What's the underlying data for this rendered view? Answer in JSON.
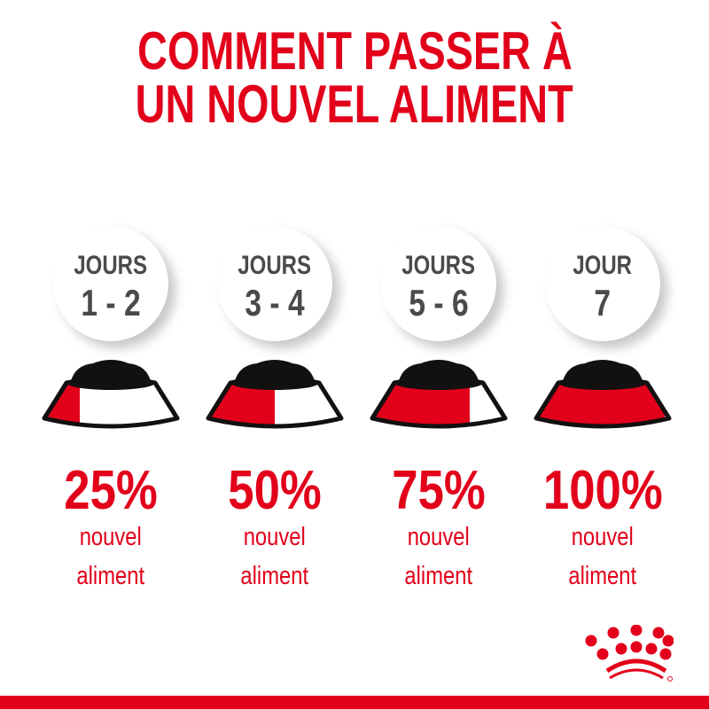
{
  "title": {
    "line1": "COMMENT PASSER À",
    "line2": "UN NOUVEL ALIMENT"
  },
  "colors": {
    "accent": "#e2001a",
    "text_gray": "#4a4a4a"
  },
  "steps": [
    {
      "label": "JOURS",
      "days": "1 - 2",
      "percent": "25%",
      "fraction": 0.25,
      "line1": "nouvel",
      "line2": "aliment"
    },
    {
      "label": "JOURS",
      "days": "3 - 4",
      "percent": "50%",
      "fraction": 0.5,
      "line1": "nouvel",
      "line2": "aliment"
    },
    {
      "label": "JOURS",
      "days": "5 - 6",
      "percent": "75%",
      "fraction": 0.75,
      "line1": "nouvel",
      "line2": "aliment"
    },
    {
      "label": "JOUR",
      "days": "7",
      "percent": "100%",
      "fraction": 1.0,
      "line1": "nouvel",
      "line2": "aliment"
    }
  ],
  "logo": {
    "name": "crown-logo"
  }
}
